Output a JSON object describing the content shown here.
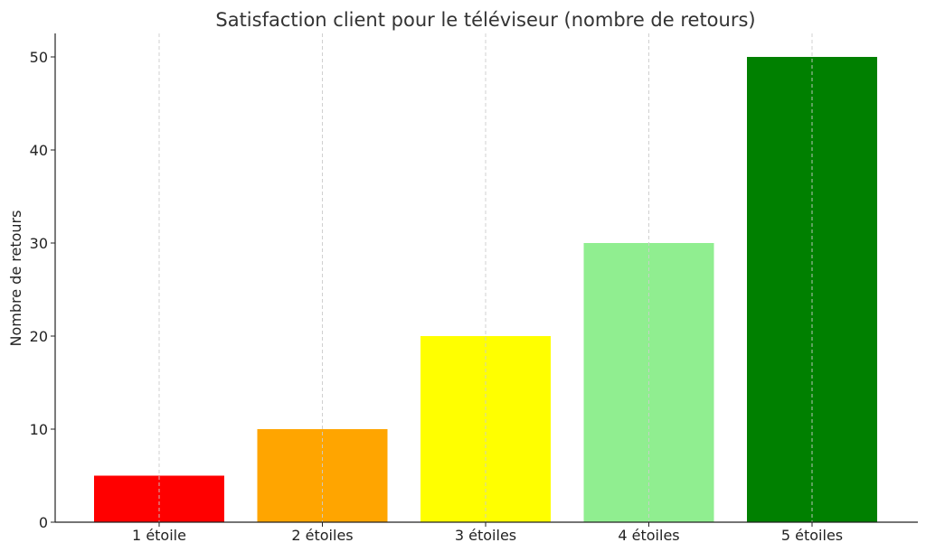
{
  "chart_data": {
    "type": "bar",
    "title": "Satisfaction client pour le téléviseur (nombre de retours)",
    "xlabel": "",
    "ylabel": "Nombre de retours",
    "categories": [
      "1 étoile",
      "2 étoiles",
      "3 étoiles",
      "4 étoiles",
      "5 étoiles"
    ],
    "values": [
      5,
      10,
      20,
      30,
      50
    ],
    "colors": [
      "#ff0000",
      "#ffa500",
      "#ffff00",
      "#90ee90",
      "#008000"
    ],
    "ylim": [
      0,
      52.5
    ],
    "yticks": [
      0,
      10,
      20,
      30,
      40,
      50
    ],
    "grid": "vertical dashed",
    "legend": "none"
  }
}
